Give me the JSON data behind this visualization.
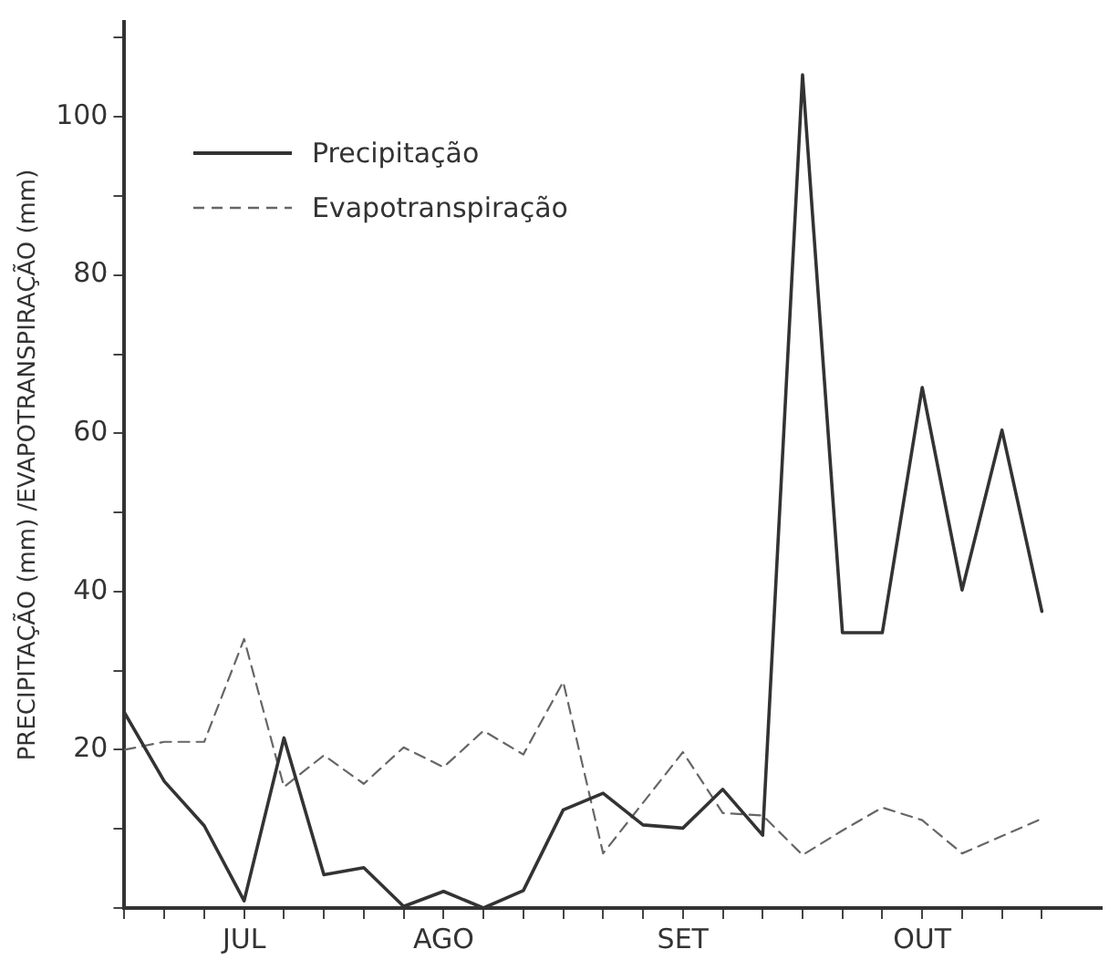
{
  "chart_data": {
    "type": "line",
    "ylabel": "PRECIPITAÇÃO (mm) /EVAPOTRANSPIRAÇÃO (mm)",
    "categories": [
      null,
      null,
      null,
      "JUL",
      null,
      null,
      null,
      null,
      "AGO",
      null,
      null,
      null,
      null,
      null,
      "SET",
      null,
      null,
      null,
      null,
      null,
      "OUT",
      null,
      null,
      null
    ],
    "ylim": [
      0,
      112
    ],
    "yticks": [
      {
        "value": 0,
        "label": null
      },
      {
        "value": 10,
        "label": null
      },
      20,
      {
        "value": 30,
        "label": null
      },
      40,
      {
        "value": 50,
        "label": null
      },
      60,
      {
        "value": 70,
        "label": null
      },
      80,
      {
        "value": 90,
        "label": null
      },
      100,
      {
        "value": 110,
        "label": null
      }
    ],
    "grid": false,
    "legend": "top left",
    "marker": "none",
    "series": [
      {
        "name": "Precipitação",
        "color": "#333333",
        "line_style": "solid",
        "values": [
          24.7,
          16,
          10.4,
          0.9,
          21.5,
          4.2,
          5.1,
          0.2,
          2.1,
          0,
          2.2,
          12.4,
          14.5,
          10.5,
          10.1,
          15,
          9.2,
          105.3,
          34.8,
          34.8,
          65.8,
          40.2,
          60.4,
          37.5
        ]
      },
      {
        "name": "Evapotranspiração",
        "color": "#666666",
        "line_style": "dashed",
        "values": [
          20,
          21,
          21,
          34,
          15.3,
          19.3,
          15.7,
          20.3,
          17.8,
          22.4,
          19.4,
          28.6,
          6.9,
          13.3,
          19.7,
          12,
          11.7,
          6.7,
          9.8,
          12.7,
          11.1,
          6.9,
          9.1,
          11.3
        ]
      }
    ]
  }
}
